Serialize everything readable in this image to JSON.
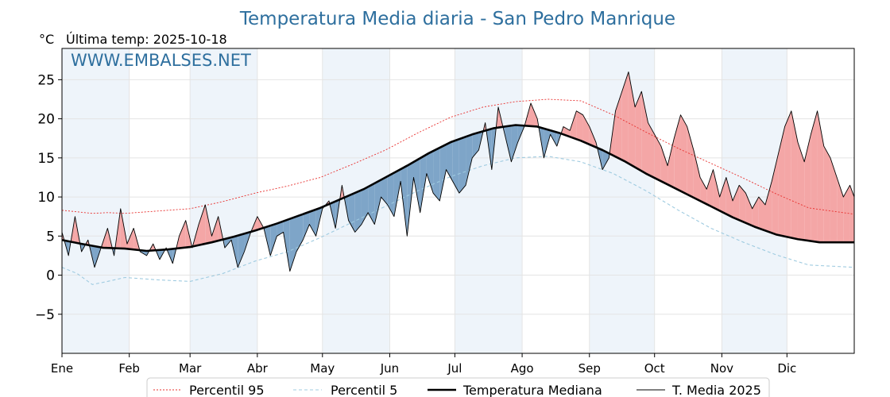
{
  "chart_data": {
    "type": "line",
    "title": "Temperatura Media diaria - San Pedro Manrique",
    "unit_label": "°C",
    "last_update": "Última temp: 2025-10-18",
    "watermark": "WWW.EMBALSES.NET",
    "xlabel": "",
    "ylabel": "",
    "xlim": [
      1,
      366
    ],
    "ylim": [
      -10,
      29
    ],
    "yticks": [
      -5,
      0,
      5,
      10,
      15,
      20,
      25
    ],
    "ytick_labels": [
      "−5",
      "0",
      "5",
      "10",
      "15",
      "20",
      "25"
    ],
    "month_labels": [
      "Ene",
      "Feb",
      "Mar",
      "Abr",
      "May",
      "Jun",
      "Jul",
      "Ago",
      "Sep",
      "Oct",
      "Nov",
      "Dic"
    ],
    "month_start_day": [
      1,
      32,
      60,
      91,
      121,
      152,
      182,
      213,
      244,
      274,
      305,
      335
    ],
    "grid": true,
    "legend_position": "bottom",
    "colors": {
      "p95": "#e8302e",
      "p5": "#9fcbe0",
      "median": "#000000",
      "current": "#000000",
      "above_fill": "#f4a6a6",
      "below_fill": "#7ea5c8",
      "title": "#2e6f9e",
      "stripe": "#eef4fa"
    },
    "series": [
      {
        "name": "Percentil 95",
        "key": "p95",
        "style": "dotted",
        "points": [
          [
            1,
            8.3
          ],
          [
            8,
            8.1
          ],
          [
            15,
            7.9
          ],
          [
            22,
            8.0
          ],
          [
            30,
            7.9
          ],
          [
            45,
            8.2
          ],
          [
            60,
            8.5
          ],
          [
            75,
            9.4
          ],
          [
            90,
            10.5
          ],
          [
            105,
            11.4
          ],
          [
            120,
            12.5
          ],
          [
            135,
            14.2
          ],
          [
            150,
            16.0
          ],
          [
            165,
            18.2
          ],
          [
            180,
            20.2
          ],
          [
            195,
            21.5
          ],
          [
            210,
            22.2
          ],
          [
            225,
            22.5
          ],
          [
            240,
            22.3
          ],
          [
            255,
            20.5
          ],
          [
            270,
            18.3
          ],
          [
            285,
            16.2
          ],
          [
            300,
            14.3
          ],
          [
            315,
            12.4
          ],
          [
            330,
            10.4
          ],
          [
            345,
            8.6
          ],
          [
            366,
            7.8
          ]
        ]
      },
      {
        "name": "Percentil 5",
        "key": "p5",
        "style": "dashed",
        "points": [
          [
            1,
            1.0
          ],
          [
            8,
            0.2
          ],
          [
            15,
            -1.2
          ],
          [
            22,
            -0.8
          ],
          [
            30,
            -0.3
          ],
          [
            45,
            -0.6
          ],
          [
            60,
            -0.8
          ],
          [
            75,
            0.2
          ],
          [
            90,
            1.8
          ],
          [
            105,
            3.0
          ],
          [
            120,
            4.8
          ],
          [
            135,
            6.8
          ],
          [
            150,
            8.8
          ],
          [
            165,
            10.8
          ],
          [
            180,
            12.6
          ],
          [
            195,
            14.0
          ],
          [
            210,
            15.0
          ],
          [
            225,
            15.2
          ],
          [
            240,
            14.5
          ],
          [
            255,
            13.0
          ],
          [
            270,
            10.8
          ],
          [
            285,
            8.3
          ],
          [
            300,
            6.0
          ],
          [
            315,
            4.2
          ],
          [
            330,
            2.6
          ],
          [
            345,
            1.3
          ],
          [
            366,
            1.0
          ]
        ]
      },
      {
        "name": "Temperatura Mediana",
        "key": "median",
        "style": "thick",
        "points": [
          [
            1,
            4.5
          ],
          [
            10,
            4.0
          ],
          [
            20,
            3.5
          ],
          [
            30,
            3.4
          ],
          [
            40,
            3.1
          ],
          [
            50,
            3.3
          ],
          [
            60,
            3.6
          ],
          [
            70,
            4.2
          ],
          [
            80,
            4.9
          ],
          [
            90,
            5.7
          ],
          [
            100,
            6.6
          ],
          [
            110,
            7.6
          ],
          [
            120,
            8.6
          ],
          [
            130,
            9.8
          ],
          [
            140,
            11.0
          ],
          [
            150,
            12.5
          ],
          [
            160,
            14.0
          ],
          [
            170,
            15.6
          ],
          [
            180,
            17.0
          ],
          [
            190,
            18.0
          ],
          [
            200,
            18.8
          ],
          [
            210,
            19.2
          ],
          [
            220,
            19.0
          ],
          [
            230,
            18.2
          ],
          [
            240,
            17.2
          ],
          [
            250,
            16.0
          ],
          [
            260,
            14.6
          ],
          [
            270,
            13.0
          ],
          [
            280,
            11.6
          ],
          [
            290,
            10.2
          ],
          [
            300,
            8.8
          ],
          [
            310,
            7.4
          ],
          [
            320,
            6.2
          ],
          [
            330,
            5.2
          ],
          [
            340,
            4.6
          ],
          [
            350,
            4.2
          ],
          [
            366,
            4.2
          ]
        ]
      },
      {
        "name": "T. Media 2025",
        "key": "current",
        "style": "thin",
        "points": [
          [
            1,
            5.5
          ],
          [
            4,
            2.5
          ],
          [
            7,
            7.5
          ],
          [
            10,
            3.0
          ],
          [
            13,
            4.5
          ],
          [
            16,
            1.0
          ],
          [
            19,
            3.5
          ],
          [
            22,
            6.0
          ],
          [
            25,
            2.5
          ],
          [
            28,
            8.5
          ],
          [
            31,
            4.0
          ],
          [
            34,
            6.0
          ],
          [
            37,
            3.0
          ],
          [
            40,
            2.5
          ],
          [
            43,
            4.0
          ],
          [
            46,
            2.0
          ],
          [
            49,
            3.5
          ],
          [
            52,
            1.5
          ],
          [
            55,
            5.0
          ],
          [
            58,
            7.0
          ],
          [
            61,
            3.5
          ],
          [
            64,
            6.5
          ],
          [
            67,
            9.0
          ],
          [
            70,
            5.0
          ],
          [
            73,
            7.5
          ],
          [
            76,
            3.5
          ],
          [
            79,
            4.5
          ],
          [
            82,
            1.0
          ],
          [
            85,
            3.0
          ],
          [
            88,
            5.5
          ],
          [
            91,
            7.5
          ],
          [
            94,
            6.0
          ],
          [
            97,
            2.5
          ],
          [
            100,
            5.0
          ],
          [
            103,
            5.5
          ],
          [
            106,
            0.5
          ],
          [
            109,
            3.0
          ],
          [
            112,
            4.5
          ],
          [
            115,
            6.5
          ],
          [
            118,
            5.0
          ],
          [
            121,
            8.5
          ],
          [
            124,
            9.5
          ],
          [
            127,
            6.0
          ],
          [
            130,
            11.5
          ],
          [
            133,
            7.0
          ],
          [
            136,
            5.5
          ],
          [
            139,
            6.5
          ],
          [
            142,
            8.0
          ],
          [
            145,
            6.5
          ],
          [
            148,
            10.0
          ],
          [
            151,
            9.0
          ],
          [
            154,
            7.5
          ],
          [
            157,
            12.0
          ],
          [
            160,
            5.0
          ],
          [
            163,
            12.5
          ],
          [
            166,
            8.0
          ],
          [
            169,
            13.0
          ],
          [
            172,
            10.5
          ],
          [
            175,
            9.5
          ],
          [
            178,
            13.5
          ],
          [
            181,
            12.0
          ],
          [
            184,
            10.5
          ],
          [
            187,
            11.5
          ],
          [
            190,
            15.0
          ],
          [
            193,
            16.0
          ],
          [
            196,
            19.5
          ],
          [
            199,
            13.5
          ],
          [
            202,
            21.5
          ],
          [
            205,
            18.0
          ],
          [
            208,
            14.5
          ],
          [
            211,
            17.0
          ],
          [
            214,
            19.0
          ],
          [
            217,
            22.0
          ],
          [
            220,
            20.0
          ],
          [
            223,
            15.0
          ],
          [
            226,
            18.0
          ],
          [
            229,
            16.5
          ],
          [
            232,
            19.0
          ],
          [
            235,
            18.5
          ],
          [
            238,
            21.0
          ],
          [
            241,
            20.5
          ],
          [
            244,
            19.0
          ],
          [
            247,
            17.0
          ],
          [
            250,
            13.5
          ],
          [
            253,
            15.0
          ],
          [
            256,
            21.0
          ],
          [
            259,
            23.5
          ],
          [
            262,
            26.0
          ],
          [
            265,
            21.5
          ],
          [
            268,
            23.5
          ],
          [
            271,
            19.5
          ],
          [
            274,
            18.0
          ],
          [
            277,
            16.5
          ],
          [
            280,
            14.0
          ],
          [
            283,
            17.5
          ],
          [
            286,
            20.5
          ],
          [
            289,
            19.0
          ],
          [
            292,
            16.0
          ],
          [
            295,
            12.5
          ],
          [
            298,
            11.0
          ],
          [
            301,
            13.5
          ],
          [
            304,
            10.0
          ],
          [
            307,
            12.5
          ],
          [
            310,
            9.5
          ],
          [
            313,
            11.5
          ],
          [
            316,
            10.5
          ],
          [
            319,
            8.5
          ],
          [
            322,
            10.0
          ],
          [
            325,
            9.0
          ],
          [
            328,
            12.0
          ],
          [
            331,
            15.5
          ],
          [
            334,
            19.0
          ],
          [
            337,
            21.0
          ],
          [
            340,
            17.0
          ],
          [
            343,
            14.5
          ],
          [
            346,
            18.0
          ],
          [
            349,
            21.0
          ],
          [
            352,
            16.5
          ],
          [
            355,
            15.0
          ],
          [
            358,
            12.5
          ],
          [
            361,
            10.0
          ],
          [
            364,
            11.5
          ],
          [
            366,
            10.0
          ]
        ]
      }
    ]
  }
}
